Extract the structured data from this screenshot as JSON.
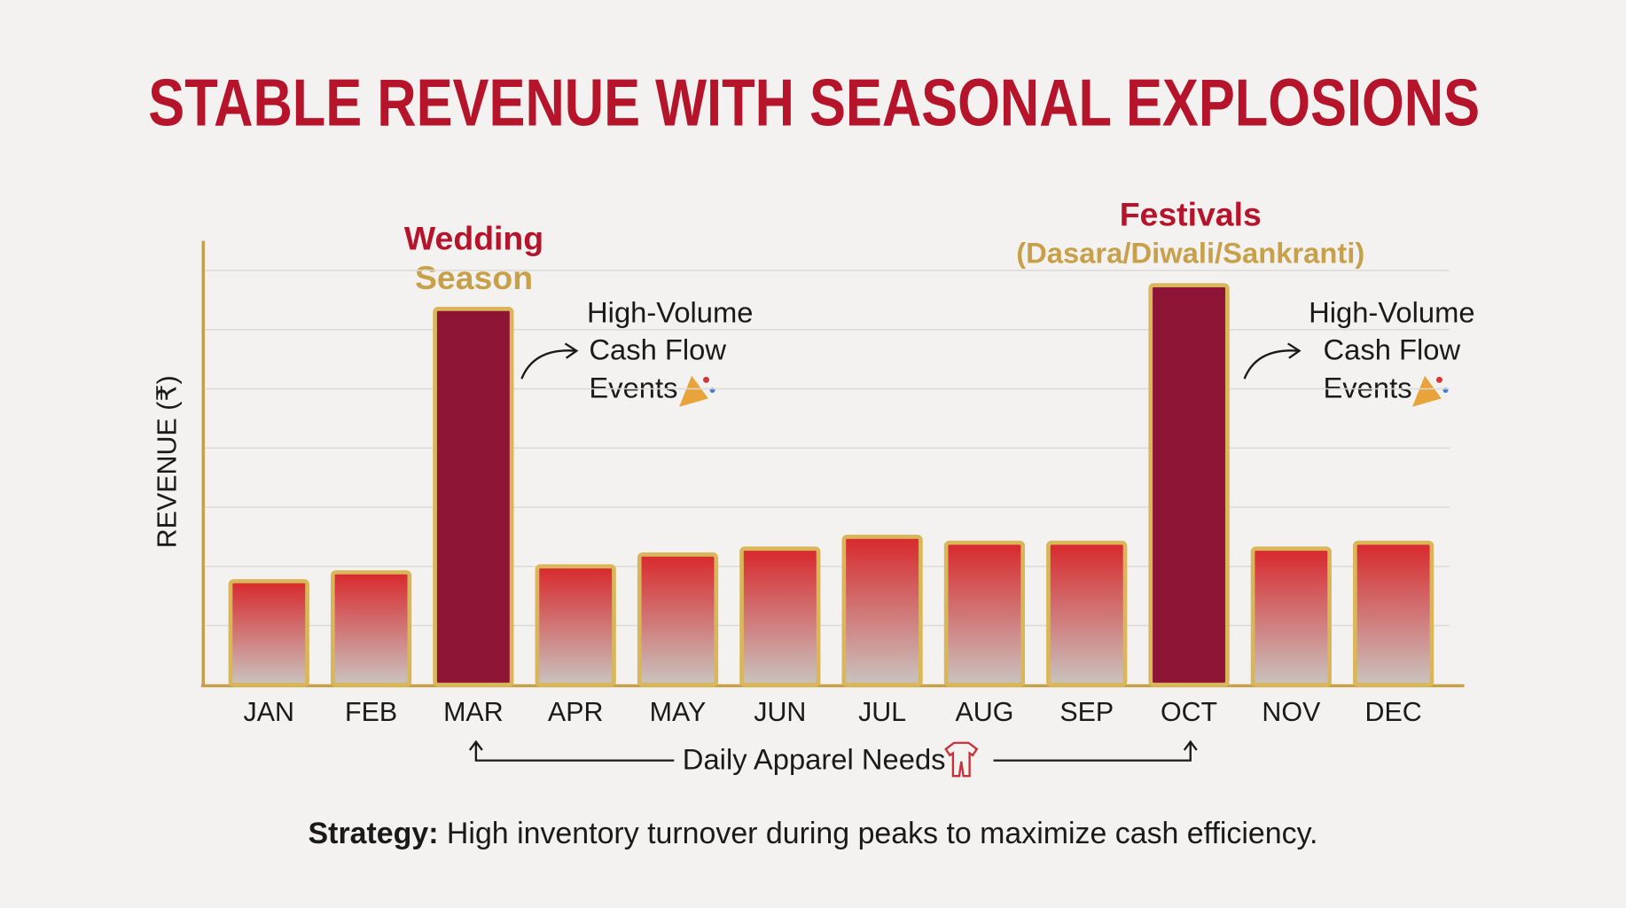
{
  "chart_data": {
    "type": "bar",
    "title": "STABLE REVENUE WITH SEASONAL EXPLOSIONS",
    "y_label": "REVENUE (₹)",
    "categories": [
      "JAN",
      "FEB",
      "MAR",
      "APR",
      "MAY",
      "JUN",
      "JUL",
      "AUG",
      "SEP",
      "OCT",
      "NOV",
      "DEC"
    ],
    "values": [
      1.75,
      1.9,
      6.35,
      2.0,
      2.2,
      2.3,
      2.5,
      2.4,
      2.4,
      6.75,
      2.3,
      2.4
    ],
    "colors": [
      "#d23a3a",
      "#d23a3a",
      "#8e1436",
      "#d23a3a",
      "#d23a3a",
      "#d23a3a",
      "#d23a3a",
      "#d23a3a",
      "#d23a3a",
      "#8e1436",
      "#d23a3a",
      "#d23a3a"
    ],
    "ylim": [
      0,
      7.5
    ],
    "yticks": [
      1,
      2,
      3,
      4,
      5,
      6,
      7
    ],
    "grid": true,
    "annotations": {
      "wedding": [
        "Wedding",
        "Season"
      ],
      "festivals": [
        "Festivals",
        "(Dasara/Diwali/Sankranti)"
      ],
      "cash_flow_left": [
        "High-Volume",
        "Cash Flow",
        "Events"
      ],
      "cash_flow_right": [
        "High-Volume",
        "Cash Flow",
        "Events"
      ],
      "daily": "Daily Apparel Needs"
    },
    "footnote": {
      "lead": "Strategy:",
      "text": " High inventory turnover during peaks to maximize cash efficiency."
    }
  }
}
